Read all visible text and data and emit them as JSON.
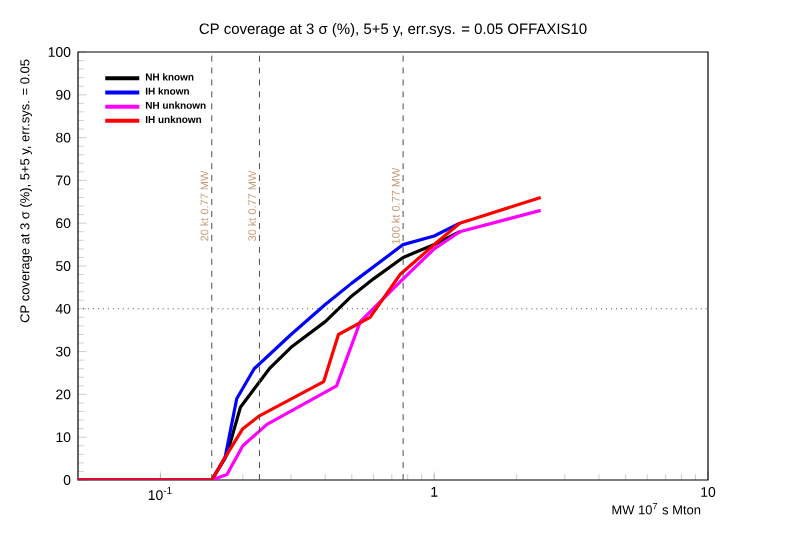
{
  "chart_data": {
    "type": "line",
    "title": "CP coverage at 3 σ (%), 5+5 y, err.sys. = 0.05 OFFAXIS10",
    "xlabel": "MW 10$^{7}$ s Mton",
    "ylabel": "CP coverage at 3 σ (%), 5+5 y, err.sys. = 0.05",
    "log": "x",
    "xlim": [
      0.05,
      10
    ],
    "ylim": [
      0,
      100
    ],
    "xticks": [
      {
        "value": 0.1,
        "label": "10$^{-1}$"
      },
      1,
      10
    ],
    "yticks": [
      0,
      10,
      20,
      30,
      40,
      50,
      60,
      70,
      80,
      90,
      100
    ],
    "grid": false,
    "legend": "top left",
    "marker": "none",
    "line_style": "solid",
    "ref_lines": [
      {
        "axis": "x",
        "value": 0.154,
        "label": "20 kt 0.77 MW",
        "line_style": "dashed"
      },
      {
        "axis": "x",
        "value": 0.23,
        "label": "30 kt 0.77 MW",
        "line_style": "dashed"
      },
      {
        "axis": "x",
        "value": 0.77,
        "label": "100 kt 0.77 MW",
        "line_style": "dashed"
      },
      {
        "axis": "y",
        "value": 40,
        "line_style": "dotted"
      }
    ],
    "series": [
      {
        "name": "NH known",
        "color": "#000000",
        "x": [
          0.05,
          0.154,
          0.175,
          0.196,
          0.25,
          0.3,
          0.4,
          0.5,
          0.6,
          0.77,
          1.0,
          1.24
        ],
        "values": [
          0,
          0,
          6,
          17,
          26,
          31,
          37,
          43,
          47,
          52,
          55,
          58
        ]
      },
      {
        "name": "IH known",
        "color": "#0000ff",
        "x": [
          0.05,
          0.154,
          0.172,
          0.19,
          0.22,
          0.3,
          0.4,
          0.5,
          0.77,
          1.0,
          1.24
        ],
        "values": [
          0,
          0,
          5,
          19,
          26,
          34,
          41,
          46,
          55,
          57,
          60
        ]
      },
      {
        "name": "NH unknown",
        "color": "#ff00ff",
        "x": [
          0.05,
          0.154,
          0.175,
          0.2,
          0.245,
          0.44,
          0.537,
          0.77,
          1.0,
          1.24,
          2.45
        ],
        "values": [
          0,
          0,
          1.3,
          8,
          13,
          22,
          37,
          47,
          54,
          58,
          63
        ]
      },
      {
        "name": "IH unknown",
        "color": "#ff0000",
        "x": [
          0.05,
          0.154,
          0.175,
          0.2,
          0.23,
          0.395,
          0.447,
          0.583,
          0.75,
          1.0,
          1.24,
          2.45
        ],
        "values": [
          0,
          0,
          6,
          12,
          15,
          23,
          34,
          38,
          48,
          55,
          60,
          66
        ]
      }
    ]
  }
}
